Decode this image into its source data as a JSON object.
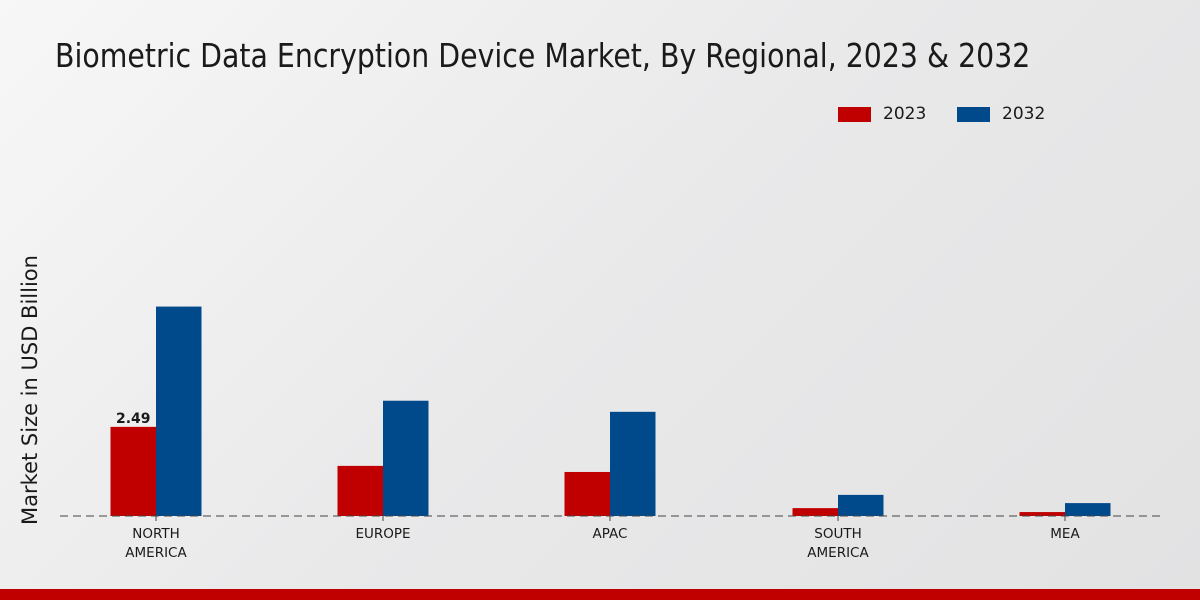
{
  "chart_data": {
    "type": "bar",
    "title": "Biometric Data Encryption Device Market, By Regional, 2023 & 2032",
    "ylabel": "Market Size in USD Billion",
    "xlabel": "",
    "categories": [
      [
        "NORTH",
        "AMERICA"
      ],
      [
        "EUROPE"
      ],
      [
        "APAC"
      ],
      [
        "SOUTH",
        "AMERICA"
      ],
      [
        "MEA"
      ]
    ],
    "series": [
      {
        "name": "2023",
        "color": "#c00000",
        "values": [
          2.49,
          1.4,
          1.23,
          0.22,
          0.11
        ]
      },
      {
        "name": "2032",
        "color": "#004a8c",
        "values": [
          5.85,
          3.22,
          2.91,
          0.59,
          0.36
        ]
      }
    ],
    "data_labels": [
      {
        "series": 0,
        "index": 0,
        "text": "2.49"
      }
    ],
    "ylim": [
      0,
      7
    ],
    "grid": false,
    "legend_position": "top-right"
  }
}
